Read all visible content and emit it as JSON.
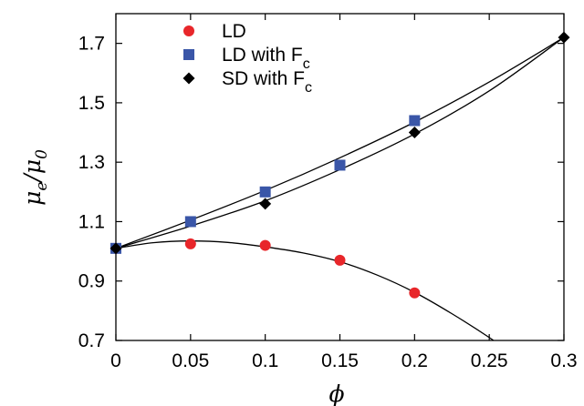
{
  "chart_data": {
    "type": "scatter",
    "xlabel": "ϕ",
    "ylabel": {
      "main": "μ",
      "sub1": "e",
      "sep": "/",
      "main2": "μ",
      "sub2": "0"
    },
    "xlim": [
      0,
      0.3
    ],
    "ylim": [
      0.7,
      1.8
    ],
    "x_ticks": [
      "0",
      "0.05",
      "0.1",
      "0.15",
      "0.2",
      "0.25",
      "0.3"
    ],
    "y_ticks": [
      "0.7",
      "0.9",
      "1.1",
      "1.3",
      "1.5",
      "1.7"
    ],
    "legend_position": "top-left",
    "series": [
      {
        "name": "LD",
        "name_sub": "",
        "marker": "circle",
        "color": "#e8262a",
        "x": [
          0,
          0.05,
          0.1,
          0.15,
          0.2
        ],
        "y": [
          1.01,
          1.025,
          1.02,
          0.97,
          0.86
        ]
      },
      {
        "name": "LD with F",
        "name_sub": "c",
        "marker": "square",
        "color": "#3a56a8",
        "x": [
          0,
          0.05,
          0.1,
          0.15,
          0.2
        ],
        "y": [
          1.01,
          1.1,
          1.2,
          1.29,
          1.44
        ]
      },
      {
        "name": "SD with F",
        "name_sub": "c",
        "marker": "diamond",
        "color": "#000000",
        "x": [
          0,
          0.1,
          0.2,
          0.3
        ],
        "y": [
          1.01,
          1.16,
          1.4,
          1.72
        ]
      }
    ],
    "fit_curves": [
      {
        "x": [
          0,
          0.05,
          0.1,
          0.15,
          0.2,
          0.25,
          0.3
        ],
        "y": [
          1.01,
          1.105,
          1.205,
          1.315,
          1.435,
          1.57,
          1.72
        ]
      },
      {
        "x": [
          0,
          0.05,
          0.1,
          0.15,
          0.2,
          0.25,
          0.3
        ],
        "y": [
          1.01,
          1.085,
          1.17,
          1.275,
          1.395,
          1.54,
          1.72
        ]
      },
      {
        "x": [
          0,
          0.025,
          0.05,
          0.075,
          0.1,
          0.125,
          0.15,
          0.175,
          0.2,
          0.225,
          0.25,
          0.265
        ],
        "y": [
          1.01,
          1.029,
          1.035,
          1.03,
          1.015,
          0.995,
          0.965,
          0.92,
          0.862,
          0.79,
          0.71,
          0.655
        ]
      }
    ]
  }
}
